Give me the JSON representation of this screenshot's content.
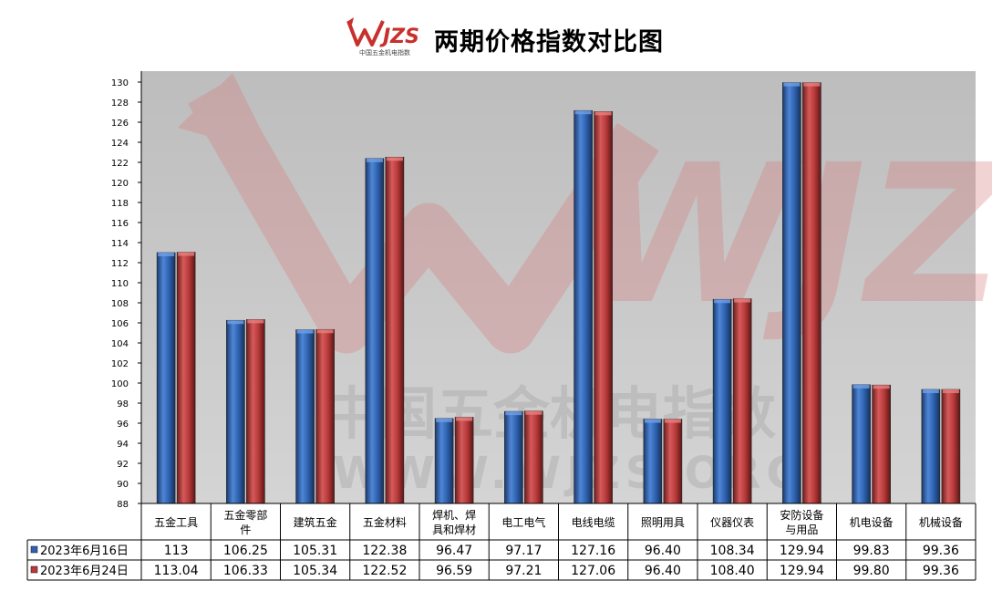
{
  "header": {
    "logo_text": "WJZS",
    "logo_subtext": "中国五金机电指数",
    "title": "两期价格指数对比图"
  },
  "watermark": {
    "line1": "中国五金机电指数",
    "line2": "WWW.WJZS.ORG"
  },
  "colors": {
    "series1": "#2f63b0",
    "series2": "#b83a3a",
    "plot_bg": "#c0c0c0"
  },
  "chart_data": {
    "type": "bar",
    "title": "两期价格指数对比图",
    "categories": [
      [
        "五金工具"
      ],
      [
        "五金零部",
        "件"
      ],
      [
        "建筑五金"
      ],
      [
        "五金材料"
      ],
      [
        "焊机、焊",
        "具和焊材"
      ],
      [
        "电工电气"
      ],
      [
        "电线电缆"
      ],
      [
        "照明用具"
      ],
      [
        "仪器仪表"
      ],
      [
        "安防设备",
        "与用品"
      ],
      [
        "机电设备"
      ],
      [
        "机械设备"
      ]
    ],
    "series": [
      {
        "name": "2023年6月16日",
        "values": [
          113,
          106.25,
          105.31,
          122.38,
          96.47,
          97.17,
          127.16,
          96.4,
          108.34,
          129.94,
          99.83,
          99.36
        ],
        "labels": [
          "113",
          "106.25",
          "105.31",
          "122.38",
          "96.47",
          "97.17",
          "127.16",
          "96.40",
          "108.34",
          "129.94",
          "99.83",
          "99.36"
        ]
      },
      {
        "name": "2023年6月24日",
        "values": [
          113.04,
          106.33,
          105.34,
          122.52,
          96.59,
          97.21,
          127.06,
          96.4,
          108.4,
          129.94,
          99.8,
          99.36
        ],
        "labels": [
          "113.04",
          "106.33",
          "105.34",
          "122.52",
          "96.59",
          "97.21",
          "127.06",
          "96.40",
          "108.40",
          "129.94",
          "99.80",
          "99.36"
        ]
      }
    ],
    "ylim": [
      88,
      130
    ],
    "yticks": [
      "88",
      "90",
      "92",
      "94",
      "96",
      "98",
      "100",
      "102",
      "104",
      "106",
      "108",
      "110",
      "112",
      "114",
      "116",
      "118",
      "120",
      "122",
      "124",
      "126",
      "128",
      "130"
    ],
    "ytick_values": [
      88,
      90,
      92,
      94,
      96,
      98,
      100,
      102,
      104,
      106,
      108,
      110,
      112,
      114,
      116,
      118,
      120,
      122,
      124,
      126,
      128,
      130
    ],
    "grid": false,
    "legend": "data-table"
  }
}
